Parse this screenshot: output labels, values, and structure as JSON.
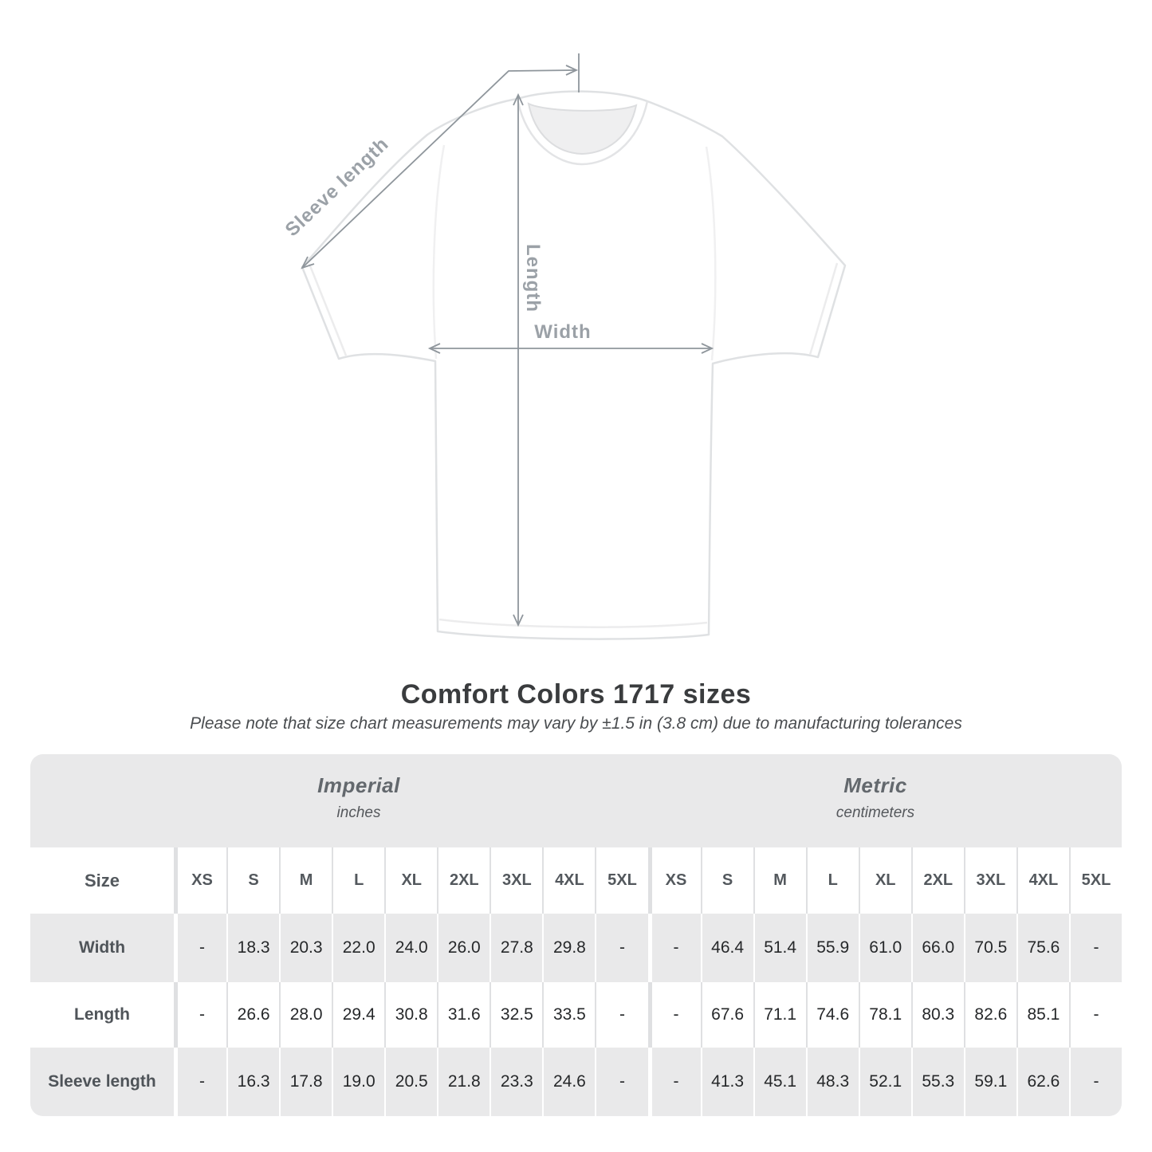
{
  "diagram": {
    "sleeve_length_label": "Sleeve length",
    "length_label": "Length",
    "width_label": "Width"
  },
  "header": {
    "title": "Comfort Colors 1717 sizes",
    "subtitle": "Please note that size chart measurements may vary by ±1.5 in (3.8 cm) due to manufacturing tolerances"
  },
  "chart_data": {
    "type": "table",
    "title": "Comfort Colors 1717 sizes",
    "sections": [
      {
        "name": "Imperial",
        "unit": "inches"
      },
      {
        "name": "Metric",
        "unit": "centimeters"
      }
    ],
    "size_header": "Size",
    "sizes": [
      "XS",
      "S",
      "M",
      "L",
      "XL",
      "2XL",
      "3XL",
      "4XL",
      "5XL"
    ],
    "rows": [
      {
        "label": "Width",
        "imperial": [
          "-",
          "18.3",
          "20.3",
          "22.0",
          "24.0",
          "26.0",
          "27.8",
          "29.8",
          "-"
        ],
        "metric": [
          "-",
          "46.4",
          "51.4",
          "55.9",
          "61.0",
          "66.0",
          "70.5",
          "75.6",
          "-"
        ]
      },
      {
        "label": "Length",
        "imperial": [
          "-",
          "26.6",
          "28.0",
          "29.4",
          "30.8",
          "31.6",
          "32.5",
          "33.5",
          "-"
        ],
        "metric": [
          "-",
          "67.6",
          "71.1",
          "74.6",
          "78.1",
          "80.3",
          "82.6",
          "85.1",
          "-"
        ]
      },
      {
        "label": "Sleeve length",
        "imperial": [
          "-",
          "16.3",
          "17.8",
          "19.0",
          "20.5",
          "21.8",
          "23.3",
          "24.6",
          "-"
        ],
        "metric": [
          "-",
          "41.3",
          "45.1",
          "48.3",
          "52.1",
          "55.3",
          "59.1",
          "62.6",
          "-"
        ]
      }
    ]
  },
  "colors": {
    "band_gray": "#e9e9ea",
    "annotation_line": "#8f969c",
    "annotation_text": "#9ba1a7",
    "header_text": "#53585d",
    "value_text": "#26282a",
    "title_text": "#3a3c3e"
  }
}
